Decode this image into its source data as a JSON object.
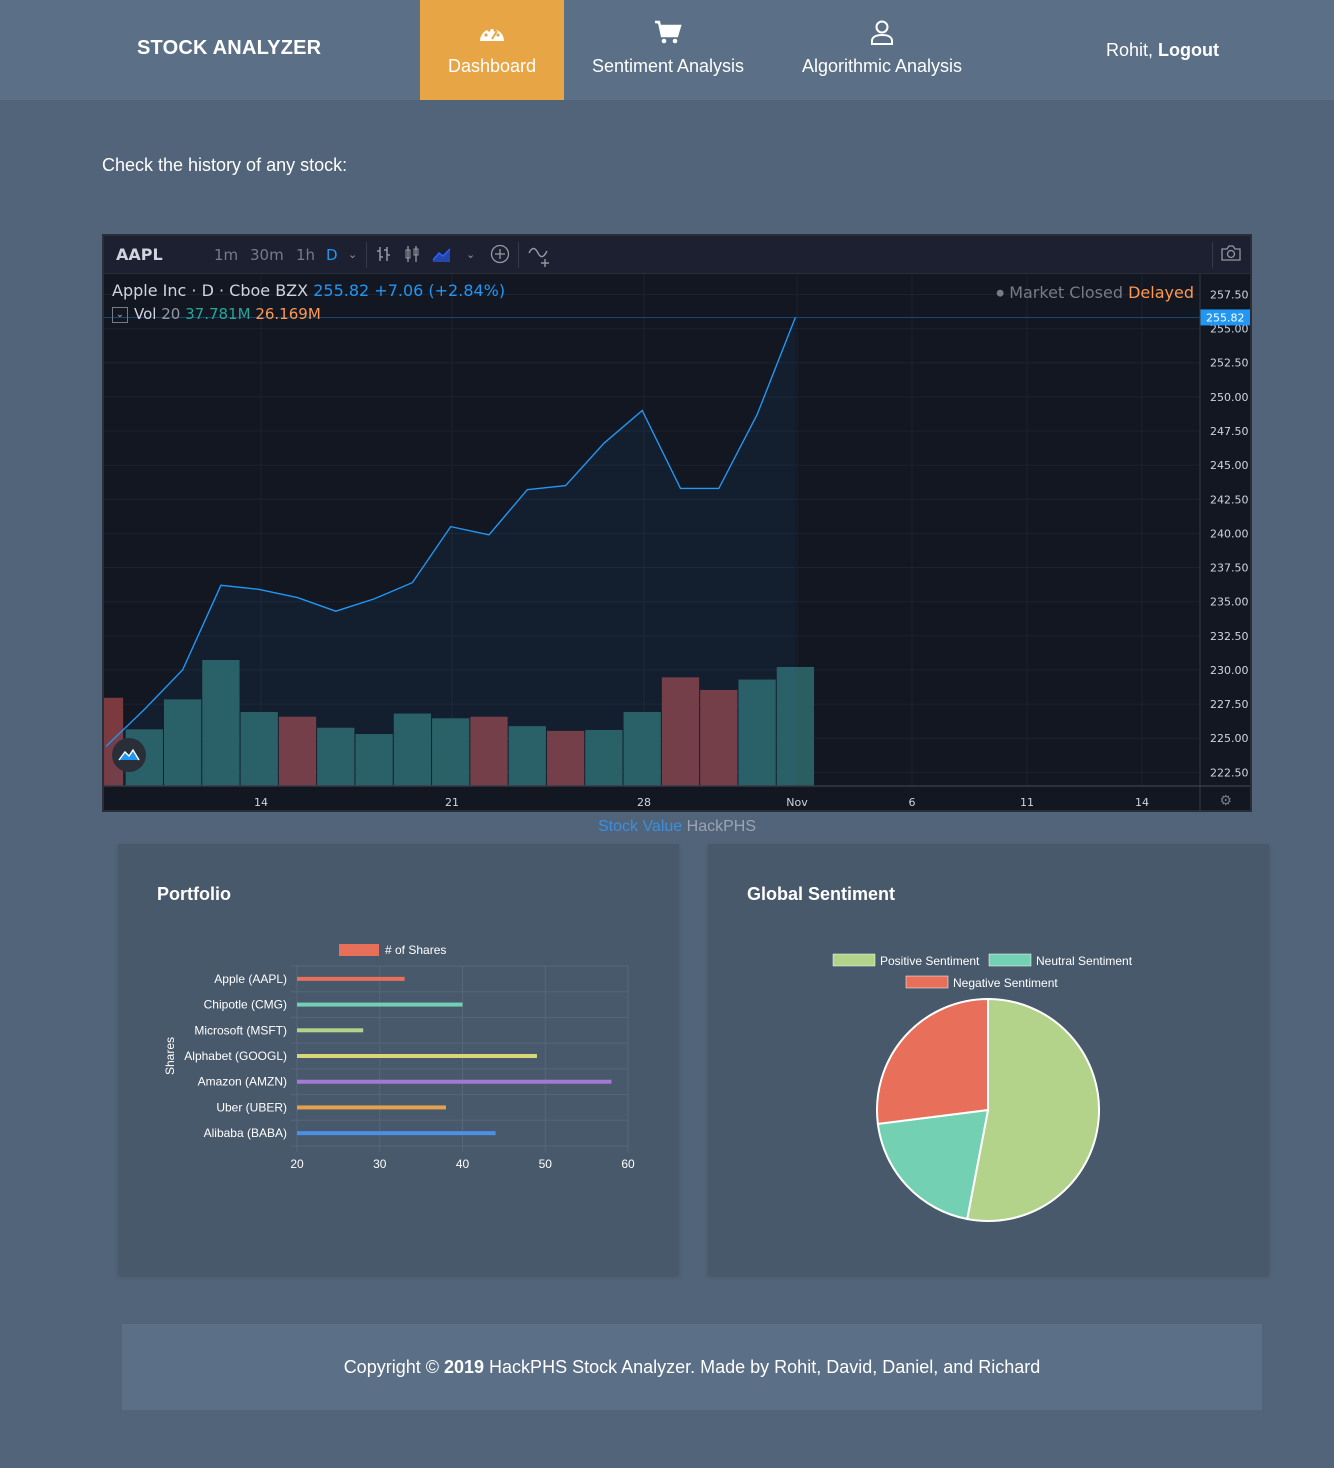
{
  "nav": {
    "brand": "STOCK ANALYZER",
    "items": [
      {
        "label": "Dashboard",
        "icon": "dashboard-gauge-icon",
        "active": true
      },
      {
        "label": "Sentiment Analysis",
        "icon": "shopping-cart-icon",
        "active": false
      },
      {
        "label": "Algorithmic Analysis",
        "icon": "user-icon",
        "active": false
      }
    ],
    "user_name": "Rohit,",
    "logout_label": "Logout",
    "accent": "#e8a545"
  },
  "intro_text": "Check the history of any stock:",
  "stock_widget": {
    "symbol": "AAPL",
    "intervals": [
      "1m",
      "30m",
      "1h",
      "D"
    ],
    "active_interval": "D",
    "company": "Apple Inc",
    "interval_code": "D",
    "exchange": "Cboe BZX",
    "last_price": "255.82",
    "change": "+7.06",
    "change_pct": "(+2.84%)",
    "vol_label": "Vol",
    "vol_period": "20",
    "vol_value": "37.781M",
    "vol_ma": "26.169M",
    "market_status": "Market Closed",
    "delay_status": "Delayed",
    "price_tag": "255.82",
    "caption_link": "Stock Value",
    "caption_brand": "HackPHS"
  },
  "price_chart_data": {
    "type": "line",
    "y_ticks": [
      "257.50",
      "255.00",
      "252.50",
      "250.00",
      "247.50",
      "245.00",
      "242.50",
      "240.00",
      "237.50",
      "235.00",
      "232.50",
      "230.00",
      "227.50",
      "225.00",
      "222.50"
    ],
    "x_ticks": [
      "14",
      "21",
      "28",
      "Nov",
      "6",
      "11",
      "14"
    ],
    "ylim": [
      221.5,
      259.0
    ],
    "prices": [
      224.4,
      227.1,
      230.0,
      236.2,
      235.9,
      235.3,
      234.3,
      235.2,
      236.4,
      240.5,
      239.9,
      243.2,
      243.5,
      246.6,
      249.0,
      243.3,
      243.3,
      248.7,
      255.82
    ],
    "volumes": [
      {
        "v": 28.0,
        "dir": "down"
      },
      {
        "v": 18.0,
        "dir": "up"
      },
      {
        "v": 27.5,
        "dir": "up"
      },
      {
        "v": 40.0,
        "dir": "up"
      },
      {
        "v": 23.5,
        "dir": "up"
      },
      {
        "v": 22.0,
        "dir": "down"
      },
      {
        "v": 18.5,
        "dir": "up"
      },
      {
        "v": 16.5,
        "dir": "up"
      },
      {
        "v": 23.0,
        "dir": "up"
      },
      {
        "v": 21.5,
        "dir": "up"
      },
      {
        "v": 22.0,
        "dir": "down"
      },
      {
        "v": 19.0,
        "dir": "up"
      },
      {
        "v": 17.5,
        "dir": "down"
      },
      {
        "v": 17.8,
        "dir": "up"
      },
      {
        "v": 23.5,
        "dir": "up"
      },
      {
        "v": 34.5,
        "dir": "down"
      },
      {
        "v": 30.5,
        "dir": "down"
      },
      {
        "v": 33.8,
        "dir": "up"
      },
      {
        "v": 37.781,
        "dir": "up"
      }
    ],
    "colors": {
      "up": "#2b5e60",
      "down": "#7a3a3e",
      "line": "#2196f3"
    }
  },
  "portfolio": {
    "title": "Portfolio",
    "chart_data": {
      "type": "bar",
      "orientation": "horizontal",
      "legend": "# of Shares",
      "ylabel": "Shares",
      "categories": [
        "Apple (AAPL)",
        "Chipotle (CMG)",
        "Microsoft (MSFT)",
        "Alphabet (GOOGL)",
        "Amazon (AMZN)",
        "Uber (UBER)",
        "Alibaba (BABA)"
      ],
      "values": [
        33,
        40,
        28,
        49,
        58,
        38,
        44
      ],
      "colors": [
        "#e8705a",
        "#74d0b3",
        "#b3d38b",
        "#d8d679",
        "#a479d4",
        "#e3a04d",
        "#4c8fe6"
      ],
      "xlim": [
        20,
        60
      ],
      "xticks": [
        "20",
        "30",
        "40",
        "50",
        "60"
      ],
      "legend_color": "#e8705a"
    }
  },
  "sentiment": {
    "title": "Global Sentiment",
    "chart_data": {
      "type": "pie",
      "labels": [
        "Positive Sentiment",
        "Neutral Sentiment",
        "Negative Sentiment"
      ],
      "values": [
        53,
        20,
        27
      ],
      "colors": [
        "#b3d38b",
        "#74d0b3",
        "#e8705a"
      ]
    }
  },
  "footer": {
    "prefix": "Copyright © ",
    "year": "2019",
    "suffix": " HackPHS Stock Analyzer. Made by Rohit, David, Daniel, and Richard"
  }
}
